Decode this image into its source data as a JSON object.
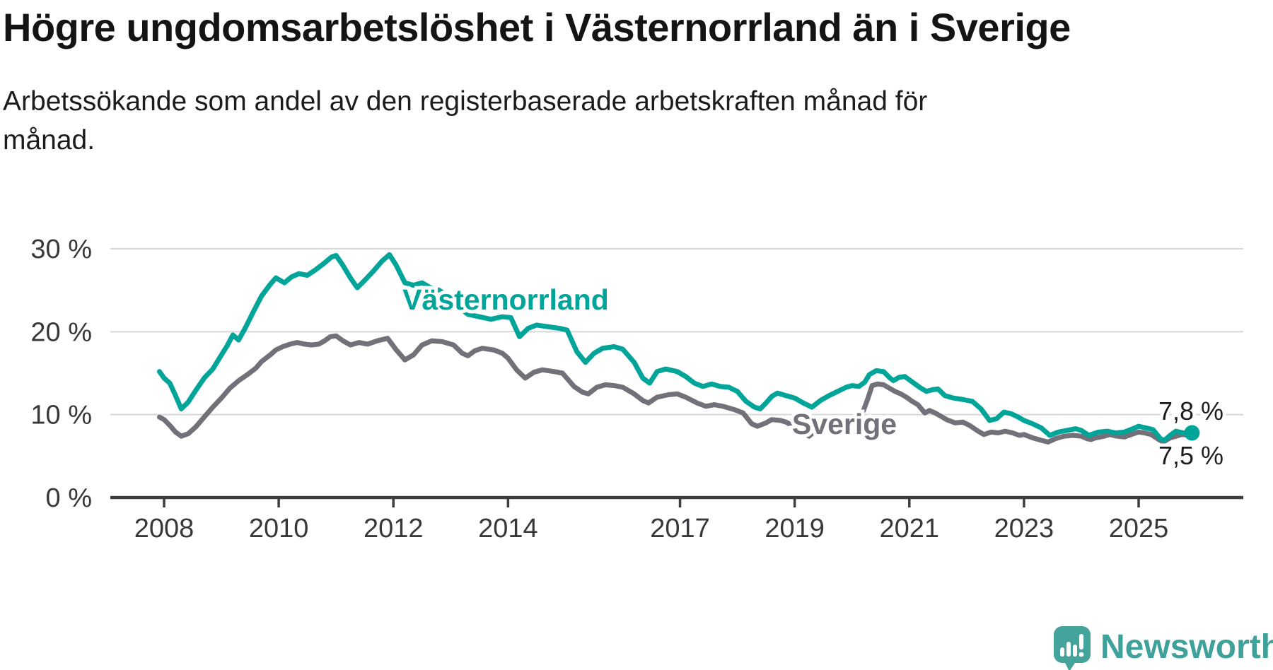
{
  "header": {
    "title": "Högre ungdomsarbetslöshet i Västernorrland än i Sverige",
    "subtitle": "Arbetssökande som andel av den registerbaserade arbetskraften månad för månad."
  },
  "chart_data": {
    "type": "line",
    "xlabel": "",
    "ylabel": "",
    "ylim": [
      0,
      32
    ],
    "x_range": [
      2007.8,
      2026.3
    ],
    "grid": true,
    "y_ticks": [
      {
        "value": 30,
        "label": "30 %"
      },
      {
        "value": 20,
        "label": "20 %"
      },
      {
        "value": 10,
        "label": "10 %"
      },
      {
        "value": 0,
        "label": "0 %"
      }
    ],
    "x_ticks": [
      {
        "value": 2008,
        "label": "2008"
      },
      {
        "value": 2010,
        "label": "2010"
      },
      {
        "value": 2012,
        "label": "2012"
      },
      {
        "value": 2014,
        "label": "2014"
      },
      {
        "value": 2017,
        "label": "2017"
      },
      {
        "value": 2019,
        "label": "2019"
      },
      {
        "value": 2021,
        "label": "2021"
      },
      {
        "value": 2023,
        "label": "2023"
      },
      {
        "value": 2025,
        "label": "2025"
      }
    ],
    "series": [
      {
        "name": "Västernorrland",
        "color": "#00a499",
        "end_label": "7,8 %",
        "last_value": 7.8,
        "data": [
          [
            2007.92,
            15.2
          ],
          [
            2008.0,
            14.4
          ],
          [
            2008.1,
            13.8
          ],
          [
            2008.2,
            12.3
          ],
          [
            2008.3,
            10.7
          ],
          [
            2008.42,
            11.5
          ],
          [
            2008.55,
            12.9
          ],
          [
            2008.7,
            14.4
          ],
          [
            2008.85,
            15.5
          ],
          [
            2009.0,
            17.2
          ],
          [
            2009.1,
            18.3
          ],
          [
            2009.2,
            19.6
          ],
          [
            2009.3,
            19.0
          ],
          [
            2009.42,
            20.5
          ],
          [
            2009.55,
            22.3
          ],
          [
            2009.7,
            24.3
          ],
          [
            2009.85,
            25.7
          ],
          [
            2009.95,
            26.5
          ],
          [
            2010.1,
            25.9
          ],
          [
            2010.22,
            26.6
          ],
          [
            2010.35,
            27.0
          ],
          [
            2010.5,
            26.8
          ],
          [
            2010.65,
            27.5
          ],
          [
            2010.8,
            28.3
          ],
          [
            2010.92,
            29.0
          ],
          [
            2011.0,
            29.2
          ],
          [
            2011.12,
            28.0
          ],
          [
            2011.25,
            26.5
          ],
          [
            2011.37,
            25.3
          ],
          [
            2011.5,
            26.2
          ],
          [
            2011.65,
            27.3
          ],
          [
            2011.8,
            28.5
          ],
          [
            2011.93,
            29.3
          ],
          [
            2012.05,
            28.0
          ],
          [
            2012.2,
            25.9
          ],
          [
            2012.35,
            25.6
          ],
          [
            2012.5,
            25.9
          ],
          [
            2012.65,
            25.3
          ],
          [
            2012.8,
            25.0
          ],
          [
            2012.95,
            24.2
          ],
          [
            2013.1,
            23.2
          ],
          [
            2013.3,
            22.1
          ],
          [
            2013.5,
            21.8
          ],
          [
            2013.7,
            21.5
          ],
          [
            2013.9,
            21.8
          ],
          [
            2014.05,
            21.7
          ],
          [
            2014.2,
            19.4
          ],
          [
            2014.35,
            20.4
          ],
          [
            2014.5,
            20.8
          ],
          [
            2014.7,
            20.6
          ],
          [
            2014.9,
            20.4
          ],
          [
            2015.03,
            20.2
          ],
          [
            2015.2,
            17.6
          ],
          [
            2015.35,
            16.3
          ],
          [
            2015.5,
            17.4
          ],
          [
            2015.65,
            18.0
          ],
          [
            2015.85,
            18.2
          ],
          [
            2016.0,
            17.9
          ],
          [
            2016.2,
            16.3
          ],
          [
            2016.35,
            14.4
          ],
          [
            2016.47,
            13.8
          ],
          [
            2016.6,
            15.2
          ],
          [
            2016.75,
            15.5
          ],
          [
            2016.95,
            15.2
          ],
          [
            2017.1,
            14.6
          ],
          [
            2017.25,
            13.8
          ],
          [
            2017.4,
            13.4
          ],
          [
            2017.55,
            13.7
          ],
          [
            2017.7,
            13.4
          ],
          [
            2017.85,
            13.3
          ],
          [
            2018.0,
            12.8
          ],
          [
            2018.15,
            11.6
          ],
          [
            2018.3,
            10.9
          ],
          [
            2018.4,
            10.7
          ],
          [
            2018.5,
            11.4
          ],
          [
            2018.6,
            12.2
          ],
          [
            2018.7,
            12.6
          ],
          [
            2018.85,
            12.3
          ],
          [
            2019.0,
            12.0
          ],
          [
            2019.15,
            11.4
          ],
          [
            2019.3,
            10.9
          ],
          [
            2019.45,
            11.7
          ],
          [
            2019.6,
            12.3
          ],
          [
            2019.75,
            12.8
          ],
          [
            2019.9,
            13.3
          ],
          [
            2020.0,
            13.5
          ],
          [
            2020.12,
            13.4
          ],
          [
            2020.22,
            13.9
          ],
          [
            2020.3,
            14.8
          ],
          [
            2020.42,
            15.3
          ],
          [
            2020.55,
            15.2
          ],
          [
            2020.65,
            14.5
          ],
          [
            2020.72,
            14.1
          ],
          [
            2020.82,
            14.5
          ],
          [
            2020.92,
            14.6
          ],
          [
            2021.0,
            14.2
          ],
          [
            2021.1,
            13.7
          ],
          [
            2021.2,
            13.2
          ],
          [
            2021.3,
            12.8
          ],
          [
            2021.4,
            13.0
          ],
          [
            2021.5,
            13.1
          ],
          [
            2021.62,
            12.3
          ],
          [
            2021.77,
            12.0
          ],
          [
            2021.95,
            11.8
          ],
          [
            2022.1,
            11.6
          ],
          [
            2022.25,
            10.7
          ],
          [
            2022.4,
            9.3
          ],
          [
            2022.52,
            9.5
          ],
          [
            2022.65,
            10.3
          ],
          [
            2022.78,
            10.1
          ],
          [
            2022.9,
            9.7
          ],
          [
            2023.0,
            9.3
          ],
          [
            2023.15,
            8.9
          ],
          [
            2023.3,
            8.4
          ],
          [
            2023.45,
            7.5
          ],
          [
            2023.6,
            7.9
          ],
          [
            2023.75,
            8.1
          ],
          [
            2023.9,
            8.3
          ],
          [
            2024.0,
            8.1
          ],
          [
            2024.13,
            7.5
          ],
          [
            2024.3,
            7.9
          ],
          [
            2024.45,
            8.0
          ],
          [
            2024.6,
            7.8
          ],
          [
            2024.75,
            7.9
          ],
          [
            2024.9,
            8.3
          ],
          [
            2025.0,
            8.6
          ],
          [
            2025.12,
            8.4
          ],
          [
            2025.25,
            8.2
          ],
          [
            2025.38,
            7.1
          ],
          [
            2025.45,
            6.9
          ],
          [
            2025.55,
            7.5
          ],
          [
            2025.65,
            8.0
          ],
          [
            2025.78,
            7.8
          ],
          [
            2025.93,
            7.8
          ]
        ]
      },
      {
        "name": "Sverige",
        "color": "#727078",
        "end_label": "7,5 %",
        "last_value": 7.5,
        "data": [
          [
            2007.92,
            9.7
          ],
          [
            2008.0,
            9.4
          ],
          [
            2008.1,
            8.7
          ],
          [
            2008.2,
            7.9
          ],
          [
            2008.3,
            7.4
          ],
          [
            2008.42,
            7.7
          ],
          [
            2008.55,
            8.5
          ],
          [
            2008.7,
            9.7
          ],
          [
            2008.85,
            10.9
          ],
          [
            2009.0,
            12.0
          ],
          [
            2009.15,
            13.2
          ],
          [
            2009.3,
            14.1
          ],
          [
            2009.45,
            14.8
          ],
          [
            2009.6,
            15.6
          ],
          [
            2009.7,
            16.4
          ],
          [
            2009.85,
            17.2
          ],
          [
            2009.95,
            17.8
          ],
          [
            2010.07,
            18.2
          ],
          [
            2010.2,
            18.5
          ],
          [
            2010.32,
            18.7
          ],
          [
            2010.45,
            18.5
          ],
          [
            2010.57,
            18.4
          ],
          [
            2010.7,
            18.5
          ],
          [
            2010.8,
            18.9
          ],
          [
            2010.9,
            19.4
          ],
          [
            2011.0,
            19.5
          ],
          [
            2011.12,
            18.9
          ],
          [
            2011.25,
            18.4
          ],
          [
            2011.4,
            18.7
          ],
          [
            2011.55,
            18.5
          ],
          [
            2011.72,
            18.9
          ],
          [
            2011.9,
            19.2
          ],
          [
            2012.05,
            17.8
          ],
          [
            2012.2,
            16.6
          ],
          [
            2012.35,
            17.2
          ],
          [
            2012.5,
            18.4
          ],
          [
            2012.67,
            18.9
          ],
          [
            2012.85,
            18.8
          ],
          [
            2013.05,
            18.4
          ],
          [
            2013.2,
            17.4
          ],
          [
            2013.3,
            17.1
          ],
          [
            2013.42,
            17.7
          ],
          [
            2013.55,
            18.0
          ],
          [
            2013.75,
            17.8
          ],
          [
            2013.9,
            17.4
          ],
          [
            2014.0,
            16.8
          ],
          [
            2014.15,
            15.4
          ],
          [
            2014.3,
            14.4
          ],
          [
            2014.45,
            15.1
          ],
          [
            2014.6,
            15.4
          ],
          [
            2014.8,
            15.2
          ],
          [
            2014.95,
            15.0
          ],
          [
            2015.15,
            13.4
          ],
          [
            2015.3,
            12.7
          ],
          [
            2015.4,
            12.5
          ],
          [
            2015.55,
            13.3
          ],
          [
            2015.7,
            13.6
          ],
          [
            2015.85,
            13.5
          ],
          [
            2016.0,
            13.3
          ],
          [
            2016.2,
            12.5
          ],
          [
            2016.35,
            11.7
          ],
          [
            2016.45,
            11.4
          ],
          [
            2016.6,
            12.1
          ],
          [
            2016.8,
            12.4
          ],
          [
            2016.95,
            12.5
          ],
          [
            2017.1,
            12.1
          ],
          [
            2017.3,
            11.4
          ],
          [
            2017.45,
            11.0
          ],
          [
            2017.6,
            11.2
          ],
          [
            2017.75,
            11.0
          ],
          [
            2017.95,
            10.6
          ],
          [
            2018.1,
            10.2
          ],
          [
            2018.25,
            8.9
          ],
          [
            2018.35,
            8.6
          ],
          [
            2018.5,
            9.0
          ],
          [
            2018.6,
            9.4
          ],
          [
            2018.75,
            9.3
          ],
          [
            2018.85,
            9.1
          ],
          [
            2019.0,
            8.5
          ],
          [
            2019.15,
            7.8
          ],
          [
            2019.25,
            7.4
          ],
          [
            2019.4,
            8.3
          ],
          [
            2019.55,
            8.7
          ],
          [
            2019.7,
            8.8
          ],
          [
            2019.85,
            8.9
          ],
          [
            2020.0,
            9.1
          ],
          [
            2020.1,
            9.4
          ],
          [
            2020.2,
            10.5
          ],
          [
            2020.28,
            12.0
          ],
          [
            2020.35,
            13.5
          ],
          [
            2020.45,
            13.7
          ],
          [
            2020.55,
            13.6
          ],
          [
            2020.65,
            13.2
          ],
          [
            2020.75,
            12.8
          ],
          [
            2020.85,
            12.5
          ],
          [
            2020.95,
            12.1
          ],
          [
            2021.05,
            11.6
          ],
          [
            2021.15,
            11.2
          ],
          [
            2021.27,
            10.2
          ],
          [
            2021.35,
            10.5
          ],
          [
            2021.45,
            10.2
          ],
          [
            2021.55,
            9.8
          ],
          [
            2021.65,
            9.4
          ],
          [
            2021.8,
            9.0
          ],
          [
            2021.93,
            9.1
          ],
          [
            2022.05,
            8.7
          ],
          [
            2022.2,
            8.0
          ],
          [
            2022.3,
            7.6
          ],
          [
            2022.43,
            7.9
          ],
          [
            2022.55,
            7.8
          ],
          [
            2022.67,
            8.0
          ],
          [
            2022.8,
            7.8
          ],
          [
            2022.92,
            7.5
          ],
          [
            2023.0,
            7.6
          ],
          [
            2023.15,
            7.2
          ],
          [
            2023.3,
            6.9
          ],
          [
            2023.42,
            6.7
          ],
          [
            2023.55,
            7.1
          ],
          [
            2023.7,
            7.4
          ],
          [
            2023.85,
            7.5
          ],
          [
            2024.0,
            7.4
          ],
          [
            2024.1,
            7.1
          ],
          [
            2024.17,
            7.0
          ],
          [
            2024.25,
            7.2
          ],
          [
            2024.4,
            7.4
          ],
          [
            2024.5,
            7.6
          ],
          [
            2024.62,
            7.4
          ],
          [
            2024.75,
            7.3
          ],
          [
            2024.87,
            7.6
          ],
          [
            2025.0,
            7.9
          ],
          [
            2025.1,
            7.8
          ],
          [
            2025.22,
            7.6
          ],
          [
            2025.35,
            7.0
          ],
          [
            2025.43,
            6.7
          ],
          [
            2025.55,
            7.2
          ],
          [
            2025.65,
            7.4
          ],
          [
            2025.75,
            7.6
          ],
          [
            2025.93,
            7.5
          ]
        ]
      }
    ],
    "colors": {
      "gridline": "#d8d8d8",
      "axis": "#3d3d3f",
      "tick_label": "#38383c",
      "end_label_text": "#1d1d1d"
    }
  },
  "branding": {
    "name": "Newsworthy",
    "text_color": "#3fa29a",
    "bubble_color": "#44a49c"
  }
}
